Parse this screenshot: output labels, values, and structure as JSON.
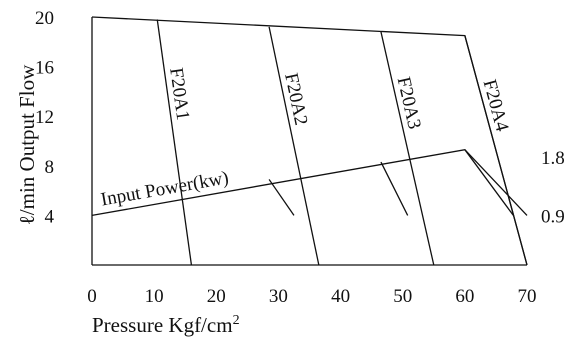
{
  "chart_data": {
    "type": "line",
    "xlabel": "Pressure Kgf/cm",
    "xlabel_sup": "2",
    "ylabel": "ℓ/min Output Flow",
    "xlim": [
      0,
      70
    ],
    "ylim": [
      0,
      20
    ],
    "x_ticks": [
      "0",
      "10",
      "20",
      "30",
      "40",
      "50",
      "60",
      "70"
    ],
    "y_ticks": [
      "4",
      "8",
      "12",
      "16",
      "20"
    ],
    "right_axis": {
      "ticks": [
        {
          "label": "0.9",
          "flow_equiv": 4
        },
        {
          "label": "1.8",
          "flow_equiv": 8.7
        }
      ]
    },
    "output_flow_envelope": [
      [
        0,
        20
      ],
      [
        60,
        18.5
      ],
      [
        70,
        0
      ]
    ],
    "input_power_line": {
      "label": "Input Power(kw)",
      "points": [
        [
          0,
          4
        ],
        [
          60,
          9.3
        ],
        [
          70,
          4
        ]
      ]
    },
    "series": [
      {
        "name": "F20A1",
        "values": [
          [
            10.5,
            19.8
          ],
          [
            16,
            0
          ]
        ]
      },
      {
        "name": "F20A2",
        "values": [
          [
            28.5,
            19.2
          ],
          [
            36.5,
            0
          ]
        ]
      },
      {
        "name": "F20A3",
        "values": [
          [
            46.5,
            18.8
          ],
          [
            55,
            0
          ]
        ]
      },
      {
        "name": "F20A4",
        "values": [
          [
            60,
            18.5
          ],
          [
            70,
            0
          ]
        ]
      }
    ],
    "power_drops": [
      [
        [
          28.5,
          6.9
        ],
        [
          32.5,
          4.0
        ]
      ],
      [
        [
          46.5,
          8.3
        ],
        [
          50.8,
          4.0
        ]
      ],
      [
        [
          60,
          9.3
        ],
        [
          67.8,
          4.0
        ]
      ]
    ]
  }
}
